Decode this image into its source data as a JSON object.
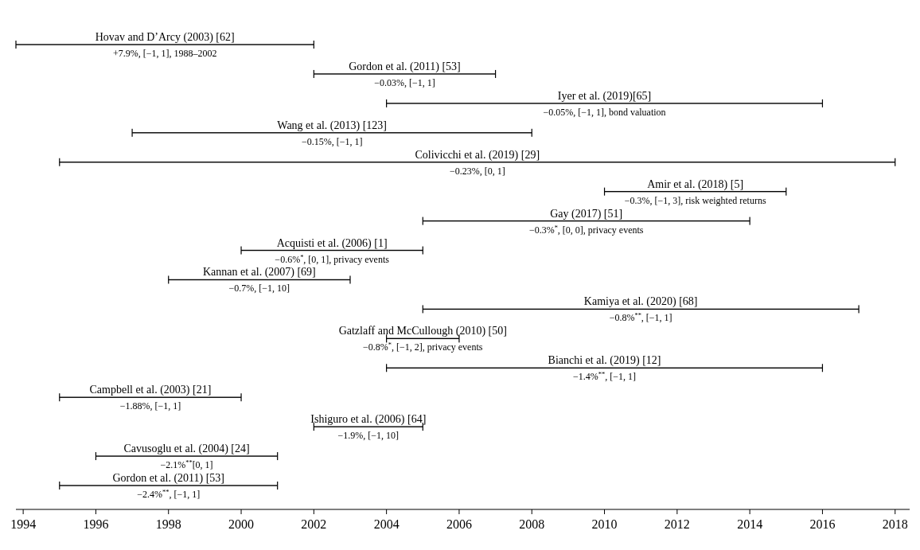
{
  "chart_data": {
    "type": "bar",
    "orientation": "horizontal",
    "color": "#000000",
    "categories": [
      "Hovav and D’Arcy (2003) [62]",
      "Gordon et al. (2011) [53]",
      "Iyer et al. (2019)[65]",
      "Wang et al. (2013) [123]",
      "Colivicchi et al. (2019) [29]",
      "Amir et al. (2018) [5]",
      "Gay (2017) [51]",
      "Acquisti et al. (2006) [1]",
      "Kannan et al. (2007) [69]",
      "Kamiya et al. (2020) [68]",
      "Gatzlaff and McCullough (2010) [50]",
      "Bianchi et al. (2019) [12]",
      "Campbell et al. (2003) [21]",
      "Ishiguro et al. (2006) [64]",
      "Cavusoglu et al. (2004) [24]",
      "Gordon et al. (2011) [53]"
    ],
    "base": [
      1993.8,
      2002,
      2004,
      1997,
      1995,
      2010,
      2005,
      2000,
      1998,
      2005,
      2004,
      2004,
      1995,
      2002,
      1996,
      1995
    ],
    "values": [
      8.2,
      5,
      12,
      11,
      23,
      5,
      9,
      5,
      5,
      12,
      2,
      12,
      5,
      3,
      5,
      6
    ],
    "annotations": [
      "+7.9%, [−1, 1], 1988–2002",
      "−0.03%, [−1, 1]",
      "−0.05%, [−1, 1], bond valuation",
      "−0.15%, [−1, 1]",
      "−0.23%, [0, 1]",
      "−0.3%, [−1, 3], risk weighted returns",
      "−0.3%$^{*}$, [0, 0], privacy events",
      "−0.6%$^{*}$, [0, 1], privacy events",
      "−0.7%, [−1, 10]",
      "−0.8%$^{**}$, [−1, 1]",
      "−0.8%$^{*}$, [−1, 2], privacy events",
      "−1.4%$^{**}$, [−1, 1]",
      "−1.88%, [−1, 1]",
      "−1.9%, [−1, 10]",
      "−2.1%$^{**}$[0, 1]",
      "−2.4%$^{**}$, [−1, 1]"
    ],
    "xlim": [
      1993.8,
      2018.4
    ],
    "xticks": [
      1994,
      1996,
      1998,
      2000,
      2002,
      2004,
      2006,
      2008,
      2010,
      2012,
      2014,
      2016,
      2018
    ]
  }
}
